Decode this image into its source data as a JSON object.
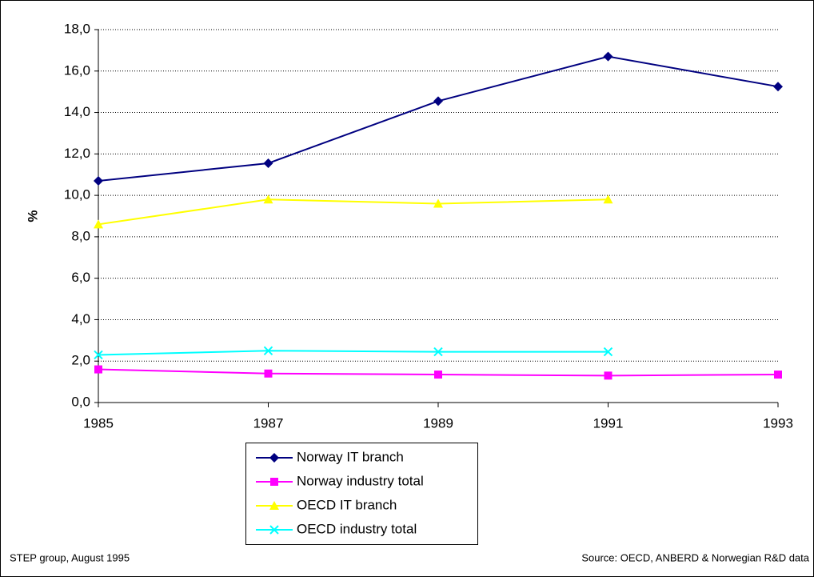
{
  "chart_data": {
    "type": "line",
    "ylabel": "%",
    "x": [
      1985,
      1987,
      1989,
      1991,
      1993
    ],
    "xlim": [
      1985,
      1993
    ],
    "xticks": [
      1985,
      1987,
      1989,
      1991,
      1993
    ],
    "ylim": [
      0,
      18
    ],
    "yticks": [
      {
        "value": 0,
        "label": "0,0"
      },
      {
        "value": 2,
        "label": "2,0"
      },
      {
        "value": 4,
        "label": "4,0"
      },
      {
        "value": 6,
        "label": "6,0"
      },
      {
        "value": 8,
        "label": "8,0"
      },
      {
        "value": 10,
        "label": "10,0"
      },
      {
        "value": 12,
        "label": "12,0"
      },
      {
        "value": 14,
        "label": "14,0"
      },
      {
        "value": 16,
        "label": "16,0"
      },
      {
        "value": 18,
        "label": "18,0"
      }
    ],
    "grid": true,
    "series": [
      {
        "name": "Norway IT branch",
        "color": "#000080",
        "marker": "diamond",
        "values": [
          10.7,
          11.55,
          14.55,
          16.7,
          15.25
        ]
      },
      {
        "name": "Norway industry total",
        "color": "#ff00ff",
        "marker": "square",
        "values": [
          1.6,
          1.4,
          1.35,
          1.3,
          1.35
        ]
      },
      {
        "name": "OECD IT branch",
        "color": "#ffff00",
        "marker": "triangle",
        "values": [
          8.6,
          9.8,
          9.6,
          9.8,
          null
        ]
      },
      {
        "name": "OECD industry total",
        "color": "#00ffff",
        "marker": "x",
        "values": [
          2.3,
          2.5,
          2.45,
          2.45,
          null
        ]
      }
    ],
    "notes": [
      "STEP group, August 1995",
      "Source: OECD, ANBERD & Norwegian R&D data"
    ]
  }
}
